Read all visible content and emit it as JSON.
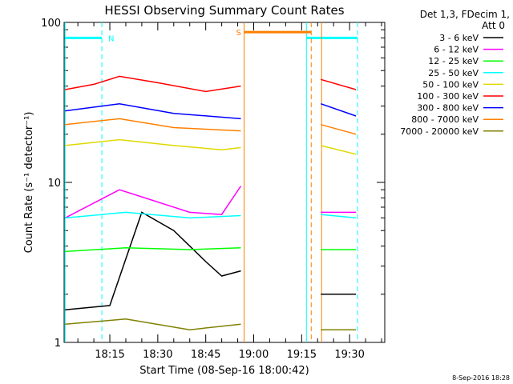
{
  "chart_data": {
    "type": "line",
    "title": "HESSI Observing Summary Count Rates",
    "xlabel": "Start Time (08-Sep-16 18:00:42)",
    "ylabel": "Count Rate (s⁻¹ detector⁻¹)",
    "y_scale": "log",
    "ylim": [
      1,
      100
    ],
    "xlim": [
      "18:00:42",
      "19:41:00"
    ],
    "x_ticks": [
      "18:15",
      "18:30",
      "18:45",
      "19:00",
      "19:15",
      "19:30"
    ],
    "y_ticks": [
      "1",
      "10",
      "100"
    ],
    "legend_header": [
      "Det 1,3, FDecim 1,",
      "Att 0"
    ],
    "legend_position": "right",
    "series": [
      {
        "name": "3 - 6 keV",
        "color": "#000000",
        "segments": [
          {
            "start": "18:00:42",
            "end": "18:56:45",
            "points": [
              {
                "t": "18:01",
                "v": 1.6
              },
              {
                "t": "18:15",
                "v": 1.7
              },
              {
                "t": "18:25",
                "v": 6.5
              },
              {
                "t": "18:35",
                "v": 5.0
              },
              {
                "t": "18:45",
                "v": 3.2
              },
              {
                "t": "18:50",
                "v": 2.6
              },
              {
                "t": "18:56",
                "v": 2.8
              }
            ]
          },
          {
            "start": "19:21:15",
            "end": "19:32:30",
            "points": [
              {
                "t": "19:21",
                "v": 2.0
              },
              {
                "t": "19:32",
                "v": 2.0
              }
            ]
          }
        ]
      },
      {
        "name": "6 - 12 keV",
        "color": "#ff00ff",
        "segments": [
          {
            "start": "18:00:42",
            "end": "18:56:45",
            "points": [
              {
                "t": "18:01",
                "v": 6.0
              },
              {
                "t": "18:18",
                "v": 9.0
              },
              {
                "t": "18:26",
                "v": 8.0
              },
              {
                "t": "18:40",
                "v": 6.5
              },
              {
                "t": "18:50",
                "v": 6.3
              },
              {
                "t": "18:56",
                "v": 9.5
              }
            ]
          },
          {
            "start": "19:21:15",
            "end": "19:32:30",
            "points": [
              {
                "t": "19:21",
                "v": 6.5
              },
              {
                "t": "19:32",
                "v": 6.5
              }
            ]
          }
        ]
      },
      {
        "name": "12 - 25 keV",
        "color": "#00ff00",
        "segments": [
          {
            "start": "18:00:42",
            "end": "18:56:45",
            "points": [
              {
                "t": "18:01",
                "v": 3.7
              },
              {
                "t": "18:20",
                "v": 3.9
              },
              {
                "t": "18:40",
                "v": 3.8
              },
              {
                "t": "18:56",
                "v": 3.9
              }
            ]
          },
          {
            "start": "19:21:15",
            "end": "19:32:30",
            "points": [
              {
                "t": "19:21",
                "v": 3.8
              },
              {
                "t": "19:32",
                "v": 3.8
              }
            ]
          }
        ]
      },
      {
        "name": "25 - 50 keV",
        "color": "#00ffff",
        "segments": [
          {
            "start": "18:00:42",
            "end": "18:56:45",
            "points": [
              {
                "t": "18:01",
                "v": 6.0
              },
              {
                "t": "18:20",
                "v": 6.5
              },
              {
                "t": "18:40",
                "v": 6.0
              },
              {
                "t": "18:56",
                "v": 6.2
              }
            ]
          },
          {
            "start": "19:21:15",
            "end": "19:32:30",
            "points": [
              {
                "t": "19:21",
                "v": 6.3
              },
              {
                "t": "19:32",
                "v": 6.0
              }
            ]
          }
        ]
      },
      {
        "name": "50 - 100 keV",
        "color": "#e0d800",
        "segments": [
          {
            "start": "18:00:42",
            "end": "18:56:45",
            "points": [
              {
                "t": "18:01",
                "v": 17.0
              },
              {
                "t": "18:18",
                "v": 18.5
              },
              {
                "t": "18:35",
                "v": 17.0
              },
              {
                "t": "18:50",
                "v": 16.0
              },
              {
                "t": "18:56",
                "v": 16.5
              }
            ]
          },
          {
            "start": "19:21:15",
            "end": "19:32:30",
            "points": [
              {
                "t": "19:21",
                "v": 17.0
              },
              {
                "t": "19:32",
                "v": 15.0
              }
            ]
          }
        ]
      },
      {
        "name": "100 - 300 keV",
        "color": "#ff0000",
        "segments": [
          {
            "start": "18:00:42",
            "end": "18:56:45",
            "points": [
              {
                "t": "18:01",
                "v": 38.0
              },
              {
                "t": "18:10",
                "v": 41.0
              },
              {
                "t": "18:18",
                "v": 46.0
              },
              {
                "t": "18:30",
                "v": 42.0
              },
              {
                "t": "18:45",
                "v": 37.0
              },
              {
                "t": "18:56",
                "v": 40.0
              }
            ]
          },
          {
            "start": "19:21:15",
            "end": "19:32:30",
            "points": [
              {
                "t": "19:21",
                "v": 44.0
              },
              {
                "t": "19:32",
                "v": 38.0
              }
            ]
          }
        ]
      },
      {
        "name": "300 - 800 keV",
        "color": "#0000ff",
        "segments": [
          {
            "start": "18:00:42",
            "end": "18:56:45",
            "points": [
              {
                "t": "18:01",
                "v": 28.0
              },
              {
                "t": "18:18",
                "v": 31.0
              },
              {
                "t": "18:35",
                "v": 27.0
              },
              {
                "t": "18:56",
                "v": 25.0
              }
            ]
          },
          {
            "start": "19:21:15",
            "end": "19:32:30",
            "points": [
              {
                "t": "19:21",
                "v": 31.0
              },
              {
                "t": "19:32",
                "v": 26.0
              }
            ]
          }
        ]
      },
      {
        "name": "800 - 7000 keV",
        "color": "#ff8000",
        "segments": [
          {
            "start": "18:00:42",
            "end": "18:56:45",
            "points": [
              {
                "t": "18:01",
                "v": 23.0
              },
              {
                "t": "18:18",
                "v": 25.0
              },
              {
                "t": "18:35",
                "v": 22.0
              },
              {
                "t": "18:56",
                "v": 21.0
              }
            ]
          },
          {
            "start": "19:21:15",
            "end": "19:32:30",
            "points": [
              {
                "t": "19:21",
                "v": 23.0
              },
              {
                "t": "19:32",
                "v": 20.0
              }
            ]
          }
        ]
      },
      {
        "name": "7000 - 20000 keV",
        "color": "#808000",
        "segments": [
          {
            "start": "18:00:42",
            "end": "18:56:45",
            "points": [
              {
                "t": "18:01",
                "v": 1.3
              },
              {
                "t": "18:20",
                "v": 1.4
              },
              {
                "t": "18:40",
                "v": 1.2
              },
              {
                "t": "18:56",
                "v": 1.3
              }
            ]
          },
          {
            "start": "19:21:15",
            "end": "19:32:30",
            "points": [
              {
                "t": "19:21",
                "v": 1.2
              },
              {
                "t": "19:32",
                "v": 1.2
              }
            ]
          }
        ]
      }
    ],
    "annotations": [
      {
        "label": "N",
        "type": "night",
        "color": "#00ffff",
        "start": "18:01:00",
        "end": "18:12:30",
        "level": 80,
        "dashed_at": [
          "18:12:30",
          "19:32:30"
        ],
        "solid_at": [
          "18:01:00",
          "19:16:30"
        ],
        "second_bar": {
          "start": "19:16:30",
          "end": "19:32:30"
        }
      },
      {
        "label": "S",
        "type": "saa",
        "color": "#ff8000",
        "start": "18:57:00",
        "end": "19:18:00",
        "level": 87,
        "solid_at": [
          "18:57:00",
          "19:21:15"
        ],
        "dashed_at": [
          "19:18:00"
        ]
      }
    ],
    "footer_date": "8-Sep-2016 18:28"
  }
}
